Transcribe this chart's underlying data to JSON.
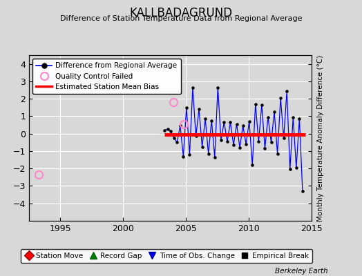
{
  "title": "KALLBADAGRUND",
  "subtitle": "Difference of Station Temperature Data from Regional Average",
  "ylabel": "Monthly Temperature Anomaly Difference (°C)",
  "xlim": [
    1992.5,
    2015.0
  ],
  "ylim": [
    -5,
    4.5
  ],
  "yticks": [
    -4,
    -3,
    -2,
    -1,
    0,
    1,
    2,
    3,
    4
  ],
  "xticks": [
    1995,
    2000,
    2005,
    2010,
    2015
  ],
  "bg_color": "#d8d8d8",
  "plot_bg_color": "#d8d8d8",
  "bias_line_y": -0.05,
  "bias_line_x_start": 2003.3,
  "bias_line_x_end": 2014.5,
  "qc_failed_points": [
    [
      1993.3,
      -2.35
    ],
    [
      2004.0,
      1.8
    ],
    [
      2004.85,
      0.55
    ]
  ],
  "main_data_x": [
    2003.3,
    2003.55,
    2003.8,
    2004.05,
    2004.3,
    2004.55,
    2004.8,
    2005.05,
    2005.3,
    2005.55,
    2005.8,
    2006.05,
    2006.3,
    2006.55,
    2006.8,
    2007.05,
    2007.3,
    2007.55,
    2007.8,
    2008.05,
    2008.3,
    2008.55,
    2008.8,
    2009.05,
    2009.3,
    2009.55,
    2009.8,
    2010.05,
    2010.3,
    2010.55,
    2010.8,
    2011.05,
    2011.3,
    2011.55,
    2011.8,
    2012.05,
    2012.3,
    2012.55,
    2012.8,
    2013.05,
    2013.3,
    2013.55,
    2013.8,
    2014.05,
    2014.3
  ],
  "main_data_y": [
    0.2,
    0.25,
    0.15,
    -0.25,
    -0.5,
    0.45,
    -1.3,
    1.5,
    -1.2,
    2.65,
    -0.15,
    1.4,
    -0.75,
    0.85,
    -1.15,
    0.75,
    -1.35,
    2.65,
    -0.35,
    0.65,
    -0.45,
    0.65,
    -0.65,
    0.55,
    -0.8,
    0.45,
    -0.6,
    0.7,
    -1.8,
    1.7,
    -0.45,
    1.65,
    -0.85,
    0.95,
    -0.5,
    1.25,
    -1.15,
    2.05,
    -0.25,
    2.45,
    -2.05,
    0.95,
    -1.95,
    0.85,
    -3.3
  ]
}
